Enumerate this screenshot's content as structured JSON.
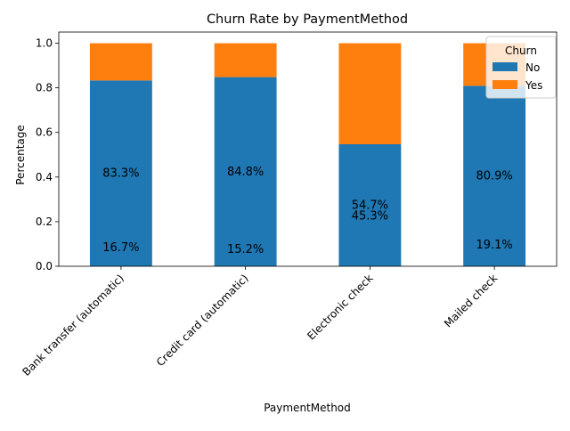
{
  "chart_data": {
    "type": "bar",
    "stacked": true,
    "title": "Churn Rate by PaymentMethod",
    "xlabel": "PaymentMethod",
    "ylabel": "Percentage",
    "ylim": [
      0,
      1.05
    ],
    "yticks": [
      "0.0",
      "0.2",
      "0.4",
      "0.6",
      "0.8",
      "1.0"
    ],
    "ytick_values": [
      0,
      0.2,
      0.4,
      0.6,
      0.8,
      1.0
    ],
    "categories": [
      "Bank transfer (automatic)",
      "Credit card (automatic)",
      "Electronic check",
      "Mailed check"
    ],
    "series": [
      {
        "name": "No",
        "values": [
          0.833,
          0.848,
          0.547,
          0.809
        ],
        "color": "#1f77b4"
      },
      {
        "name": "Yes",
        "values": [
          0.167,
          0.152,
          0.453,
          0.191
        ],
        "color": "#ff7f0e"
      }
    ],
    "annotations": {
      "upper": [
        "83.3%",
        "84.8%",
        "54.7%",
        "80.9%"
      ],
      "lower": [
        "16.7%",
        "15.2%",
        "45.3%",
        "19.1%"
      ],
      "upper_y": [
        0.4165,
        0.424,
        0.2735,
        0.4045
      ],
      "lower_y": [
        0.0835,
        0.076,
        0.2265,
        0.0955
      ]
    },
    "legend": {
      "title": "Churn",
      "position": "top-right",
      "labels": [
        "No",
        "Yes"
      ]
    },
    "grid": false
  }
}
